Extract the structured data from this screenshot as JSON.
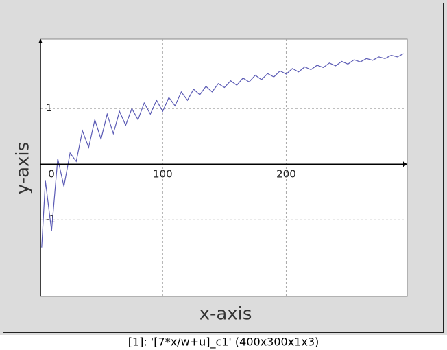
{
  "chart_data": {
    "type": "line",
    "title": "[1]: '[7*x/w+u]_c1' (400x300x1x3)",
    "x_label": "x-axis",
    "y_label": "y-axis",
    "x": [
      2,
      5,
      10,
      15,
      20,
      25,
      30,
      35,
      40,
      45,
      50,
      55,
      60,
      65,
      70,
      75,
      80,
      85,
      90,
      95,
      100,
      105,
      110,
      115,
      120,
      125,
      130,
      135,
      140,
      145,
      150,
      155,
      160,
      165,
      170,
      175,
      180,
      185,
      190,
      195,
      200,
      205,
      210,
      215,
      220,
      225,
      230,
      235,
      240,
      245,
      250,
      255,
      260,
      265,
      270,
      275,
      280,
      285,
      290,
      295
    ],
    "series": [
      {
        "color": "#5b5bb5",
        "values": [
          -1.5,
          -0.3,
          -1.2,
          0.1,
          -0.4,
          0.2,
          0.05,
          0.6,
          0.3,
          0.8,
          0.45,
          0.9,
          0.55,
          0.95,
          0.7,
          1.0,
          0.8,
          1.1,
          0.9,
          1.15,
          0.95,
          1.2,
          1.05,
          1.3,
          1.15,
          1.35,
          1.25,
          1.4,
          1.3,
          1.45,
          1.38,
          1.5,
          1.42,
          1.55,
          1.48,
          1.6,
          1.52,
          1.63,
          1.57,
          1.68,
          1.62,
          1.72,
          1.66,
          1.75,
          1.7,
          1.78,
          1.74,
          1.82,
          1.77,
          1.85,
          1.8,
          1.88,
          1.84,
          1.9,
          1.87,
          1.93,
          1.9,
          1.96,
          1.93,
          1.99
        ]
      }
    ],
    "xlim": [
      1,
      298
    ],
    "ylim": [
      -2.38,
      2.25
    ],
    "xticks": [
      0,
      100,
      200
    ],
    "yticks": [
      -1,
      1
    ],
    "grid": true
  }
}
